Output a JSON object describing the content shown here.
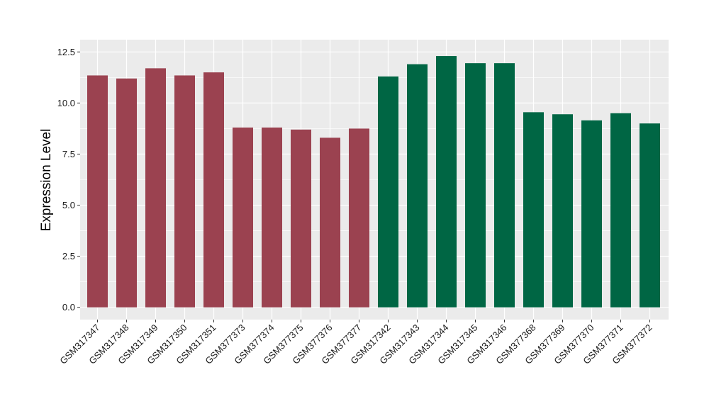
{
  "chart_data": {
    "type": "bar",
    "title": "",
    "xlabel": "",
    "ylabel": "Expression Level",
    "ylim": [
      -0.6,
      13.1
    ],
    "yticks": [
      "0.0",
      "2.5",
      "5.0",
      "7.5",
      "10.0",
      "12.5"
    ],
    "ytick_values": [
      0,
      2.5,
      5,
      7.5,
      10,
      12.5
    ],
    "grid": true,
    "legend": "none",
    "colors": {
      "panel": "#ebebeb",
      "grid": "#ffffff",
      "group1": "#9b4250",
      "group2": "#006644"
    },
    "categories": [
      "GSM317347",
      "GSM317348",
      "GSM317349",
      "GSM317350",
      "GSM317351",
      "GSM377373",
      "GSM377374",
      "GSM377375",
      "GSM377376",
      "GSM377377",
      "GSM317342",
      "GSM317343",
      "GSM317344",
      "GSM317345",
      "GSM317346",
      "GSM377368",
      "GSM377369",
      "GSM377370",
      "GSM377371",
      "GSM377372"
    ],
    "values": [
      11.35,
      11.2,
      11.7,
      11.35,
      11.5,
      8.8,
      8.8,
      8.7,
      8.3,
      8.75,
      11.3,
      11.9,
      12.3,
      11.95,
      11.95,
      9.55,
      9.45,
      9.15,
      9.5,
      9.0
    ],
    "groups": [
      1,
      1,
      1,
      1,
      1,
      1,
      1,
      1,
      1,
      1,
      2,
      2,
      2,
      2,
      2,
      2,
      2,
      2,
      2,
      2
    ]
  }
}
